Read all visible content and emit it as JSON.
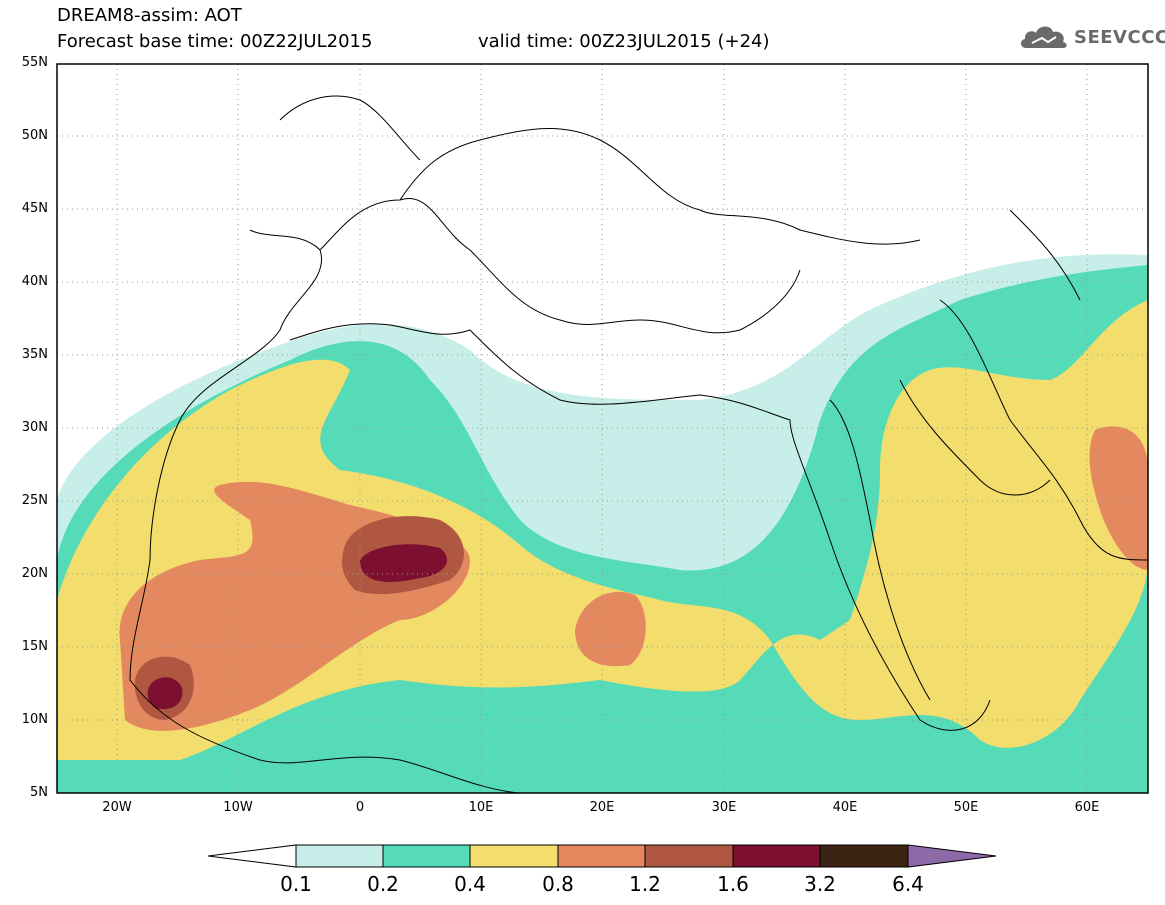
{
  "header": {
    "line1": "DREAM8-assim: AOT",
    "line2": "Forecast base time: 00Z22JUL2015",
    "line3": "valid time: 00Z23JUL2015 (+24)"
  },
  "logo": {
    "text": "SEEVCCC",
    "icon": "cloud-icon"
  },
  "map": {
    "lon_range": [
      -25,
      65
    ],
    "lat_range": [
      5,
      55
    ],
    "lat_labels": [
      "55N",
      "50N",
      "45N",
      "40N",
      "35N",
      "30N",
      "25N",
      "20N",
      "15N",
      "10N",
      "5N"
    ],
    "lon_labels": [
      "20W",
      "10W",
      "0",
      "10E",
      "20E",
      "30E",
      "40E",
      "50E",
      "60E"
    ],
    "grid": "dotted"
  },
  "colorbar": {
    "labels": [
      "0.1",
      "0.2",
      "0.4",
      "0.8",
      "1.2",
      "1.6",
      "3.2",
      "6.4"
    ],
    "colors": [
      "#ffffff",
      "#c7eee8",
      "#55dbb8",
      "#f3dd6c",
      "#e4885f",
      "#b05742",
      "#7d1030",
      "#3b2314",
      "#8e69a8"
    ]
  }
}
